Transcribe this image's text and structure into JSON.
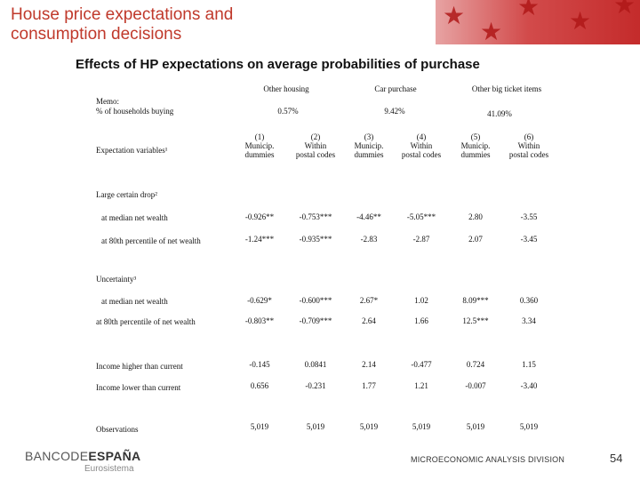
{
  "title": [
    "House price expectations and",
    "consumption decisions"
  ],
  "subtitle": "Effects of HP expectations on average probabilities of purchase",
  "groups": [
    "Other housing",
    "Car purchase",
    "Other big ticket items"
  ],
  "memo": {
    "label": [
      "Memo:",
      "% of households buying"
    ],
    "values": [
      "0.57%",
      "9.42%",
      "41.09%"
    ]
  },
  "expectation_label": "Expectation variables¹",
  "columns": [
    {
      "num": "(1)",
      "l1": "Municip.",
      "l2": "dummies"
    },
    {
      "num": "(2)",
      "l1": "Within",
      "l2": "postal codes"
    },
    {
      "num": "(3)",
      "l1": "Municip.",
      "l2": "dummies"
    },
    {
      "num": "(4)",
      "l1": "Within",
      "l2": "postal codes"
    },
    {
      "num": "(5)",
      "l1": "Municip.",
      "l2": "dummies"
    },
    {
      "num": "(6)",
      "l1": "Within",
      "l2": "postal codes"
    }
  ],
  "sections": [
    {
      "label": "Large certain drop²"
    },
    {
      "label": "Uncertainty³"
    }
  ],
  "rows": [
    {
      "label": "at median net wealth",
      "values": [
        "-0.926**",
        "-0.753***",
        "-4.46**",
        "-5.05***",
        "2.80",
        "-3.55"
      ]
    },
    {
      "label": "at 80th percentile of net wealth",
      "values": [
        "-1.24***",
        "-0.935***",
        "-2.83",
        "-2.87",
        "2.07",
        "-3.45"
      ]
    },
    {
      "label": "at median net wealth",
      "values": [
        "-0.629*",
        "-0.600***",
        "2.67*",
        "1.02",
        "8.09***",
        "0.360"
      ]
    },
    {
      "label": "at 80th percentile of net wealth",
      "values": [
        "-0.803**",
        "-0.709***",
        "2.64",
        "1.66",
        "12.5***",
        "3.34"
      ]
    },
    {
      "label": "Income higher than current",
      "values": [
        "-0.145",
        "0.0841",
        "2.14",
        "-0.477",
        "0.724",
        "1.15"
      ]
    },
    {
      "label": "Income lower than current",
      "values": [
        "0.656",
        "-0.231",
        "1.77",
        "1.21",
        "-0.007",
        "-3.40"
      ]
    },
    {
      "label": "Observations",
      "values": [
        "5,019",
        "5,019",
        "5,019",
        "5,019",
        "5,019",
        "5,019"
      ]
    }
  ],
  "footer": {
    "logo_part1": "BANCODE",
    "logo_part2": "ESPAÑA",
    "logo_sub": "Eurosistema",
    "division": "MICROECONOMIC ANALYSIS DIVISION",
    "page": "54"
  }
}
